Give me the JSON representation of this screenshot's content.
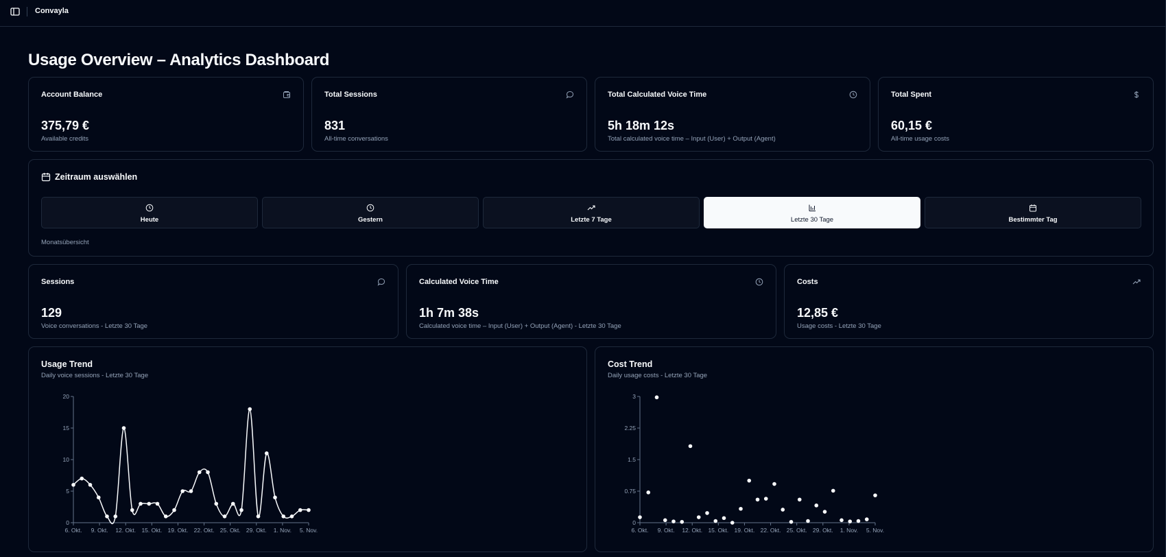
{
  "app": {
    "name": "Convayla"
  },
  "page": {
    "title": "Usage Overview – Analytics Dashboard"
  },
  "stats_top": [
    {
      "title": "Account Balance",
      "value": "375,79 €",
      "sub": "Available credits",
      "icon": "wallet-icon"
    },
    {
      "title": "Total Sessions",
      "value": "831",
      "sub": "All-time conversations",
      "icon": "chat-bubble-icon"
    },
    {
      "title": "Total Calculated Voice Time",
      "value": "5h 18m 12s",
      "sub": "Total calculated voice time – Input (User) + Output (Agent)",
      "icon": "clock-icon"
    },
    {
      "title": "Total Spent",
      "value": "60,15 €",
      "sub": "All-time usage costs",
      "icon": "dollar-icon"
    }
  ],
  "period": {
    "title": "Zeitraum auswählen",
    "options": [
      {
        "label": "Heute",
        "icon": "clock-icon"
      },
      {
        "label": "Gestern",
        "icon": "clock-icon"
      },
      {
        "label": "Letzte 7 Tage",
        "icon": "trending-up-icon"
      },
      {
        "label": "Letzte 30 Tage",
        "icon": "bar-chart-icon"
      },
      {
        "label": "Bestimmter Tag",
        "icon": "calendar-icon"
      }
    ],
    "selected": "Letzte 30 Tage",
    "note": "Monatsübersicht"
  },
  "stats_period": [
    {
      "title": "Sessions",
      "value": "129",
      "sub": "Voice conversations - Letzte 30 Tage",
      "icon": "chat-bubble-icon"
    },
    {
      "title": "Calculated Voice Time",
      "value": "1h 7m 38s",
      "sub": "Calculated voice time – Input (User) + Output (Agent) - Letzte 30 Tage",
      "icon": "clock-icon"
    },
    {
      "title": "Costs",
      "value": "12,85 €",
      "sub": "Usage costs - Letzte 30 Tage",
      "icon": "trending-up-icon"
    }
  ],
  "usage_chart": {
    "title": "Usage Trend",
    "subtitle": "Daily voice sessions - Letzte 30 Tage"
  },
  "cost_chart": {
    "title": "Cost Trend",
    "subtitle": "Daily usage costs - Letzte 30 Tage"
  },
  "chart_data": [
    {
      "type": "line",
      "title": "Usage Trend",
      "xlabel": "",
      "ylabel": "",
      "ylim": [
        0,
        20
      ],
      "yticks": [
        "0",
        "5",
        "10",
        "15",
        "20"
      ],
      "xticks": [
        "6. Okt.",
        "9. Okt.",
        "12. Okt.",
        "15. Okt.",
        "19. Okt.",
        "22. Okt.",
        "25. Okt.",
        "29. Okt.",
        "1. Nov.",
        "5. Nov."
      ],
      "series": [
        {
          "values": [
            6,
            7,
            6,
            4,
            1,
            1,
            15,
            2,
            3,
            3,
            3,
            1,
            2,
            5,
            5,
            8,
            8,
            3,
            1,
            3,
            2,
            18,
            1,
            11,
            4,
            1,
            1,
            2,
            2
          ]
        }
      ]
    },
    {
      "type": "scatter",
      "title": "Cost Trend",
      "xlabel": "",
      "ylabel": "",
      "ylim": [
        0,
        3
      ],
      "yticks": [
        "0",
        "0.75",
        "1.5",
        "2.25",
        "3"
      ],
      "xticks": [
        "6. Okt.",
        "9. Okt.",
        "12. Okt.",
        "15. Okt.",
        "19. Okt.",
        "22. Okt.",
        "25. Okt.",
        "29. Okt.",
        "1. Nov.",
        "5. Nov."
      ],
      "series": [
        {
          "values": [
            0.13,
            0.72,
            2.98,
            0.06,
            0.03,
            0.02,
            1.82,
            0.13,
            0.23,
            0.04,
            0.11,
            0.0,
            0.33,
            1.0,
            0.55,
            0.57,
            0.92,
            0.31,
            0.02,
            0.55,
            0.04,
            0.41,
            0.26,
            0.76,
            0.06,
            0.03,
            0.04,
            0.08,
            0.65
          ]
        }
      ]
    }
  ],
  "colors": {
    "background": "#020817",
    "border": "#1e293b",
    "muted": "#94a3b8",
    "foreground": "#f8fafc"
  }
}
